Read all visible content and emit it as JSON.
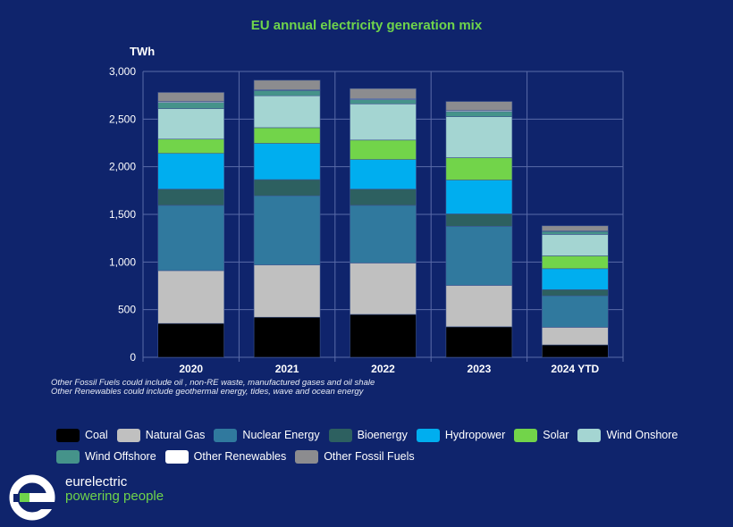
{
  "chart_data": {
    "type": "bar",
    "stacked": true,
    "title": "EU annual electricity generation mix",
    "xlabel": "",
    "ylabel": "TWh",
    "ylim": [
      0,
      3000
    ],
    "yticks": [
      0,
      500,
      1000,
      1500,
      2000,
      2500,
      3000
    ],
    "ytick_labels": [
      "0",
      "500",
      "1,000",
      "1,500",
      "2,000",
      "2,500",
      "3,000"
    ],
    "grid": true,
    "legend_position": "bottom",
    "categories": [
      "2020",
      "2021",
      "2022",
      "2023",
      "2024 YTD"
    ],
    "series": [
      {
        "name": "Coal",
        "color": "#000000",
        "values": [
          355,
          420,
          450,
          320,
          130
        ]
      },
      {
        "name": "Natural Gas",
        "color": "#c0c0c0",
        "values": [
          555,
          550,
          540,
          435,
          185
        ]
      },
      {
        "name": "Nuclear Energy",
        "color": "#30799e",
        "values": [
          685,
          725,
          605,
          620,
          330
        ]
      },
      {
        "name": "Bioenergy",
        "color": "#2d6060",
        "values": [
          170,
          170,
          170,
          130,
          65
        ]
      },
      {
        "name": "Hydropower",
        "color": "#00aeef",
        "values": [
          375,
          380,
          310,
          355,
          220
        ]
      },
      {
        "name": "Solar",
        "color": "#72d44a",
        "values": [
          150,
          165,
          205,
          235,
          135
        ]
      },
      {
        "name": "Wind Onshore",
        "color": "#a4d5d2",
        "values": [
          320,
          335,
          380,
          430,
          225
        ]
      },
      {
        "name": "Wind Offshore",
        "color": "#45938a",
        "values": [
          65,
          55,
          45,
          55,
          30
        ]
      },
      {
        "name": "Other Renewables",
        "color": "#ffffff",
        "values": [
          10,
          8,
          10,
          10,
          5
        ]
      },
      {
        "name": "Other Fossil Fuels",
        "color": "#8c8c8f",
        "values": [
          95,
          100,
          105,
          95,
          55
        ]
      }
    ]
  },
  "notes": [
    "Other Fossil Fuels could include oil , non-RE waste, manufactured gases and oil shale",
    "Other Renewables could include geothermal energy, tides, wave and ocean energy"
  ],
  "legend_rows": [
    [
      "Coal",
      "Natural Gas",
      "Nuclear Energy",
      "Bioenergy",
      "Hydropower",
      "Solar",
      "Wind Onshore"
    ],
    [
      "Wind Offshore",
      "Other Renewables",
      "Other Fossil Fuels"
    ]
  ],
  "brand": {
    "name": "eurelectric",
    "tagline": "powering people"
  }
}
